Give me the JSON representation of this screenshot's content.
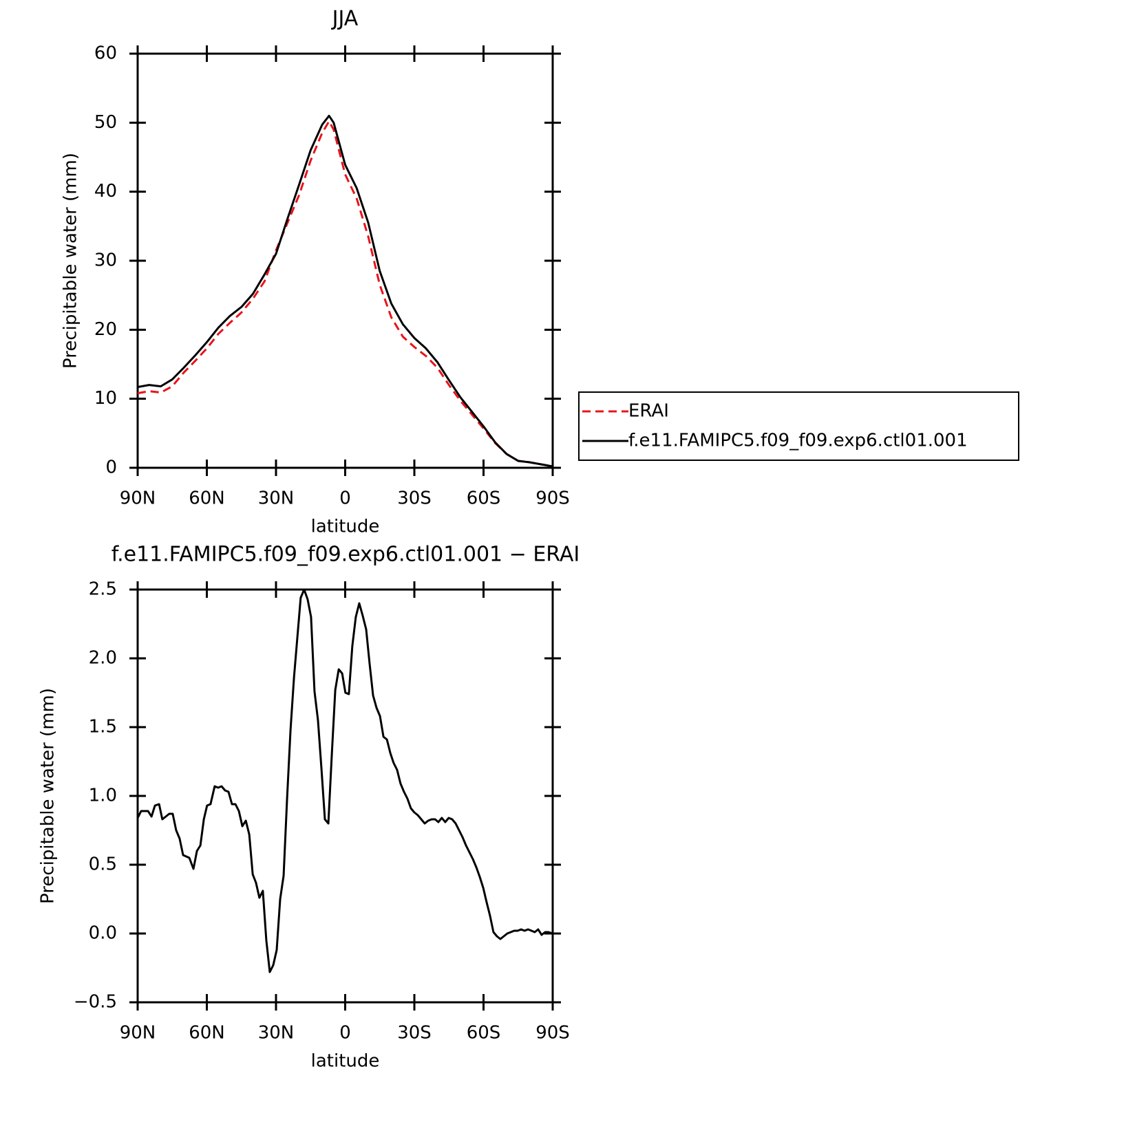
{
  "chart_data": [
    {
      "type": "line",
      "title": "JJA",
      "x_label": "latitude",
      "y_label": "Precipitable water (mm)",
      "x": [
        90,
        85,
        80,
        75,
        70,
        65,
        60,
        55,
        50,
        45,
        40,
        35,
        30,
        25,
        20,
        15,
        10,
        7,
        5,
        0,
        -5,
        -10,
        -15,
        -20,
        -25,
        -30,
        -35,
        -40,
        -45,
        -50,
        -55,
        -60,
        -65,
        -70,
        -75,
        -80,
        -85,
        -90
      ],
      "series": [
        {
          "name": "ERAI",
          "color": "#e8141a",
          "linestyle": "dashed",
          "values": [
            10.8,
            11.1,
            10.9,
            11.8,
            13.8,
            15.5,
            17.3,
            19.4,
            21.0,
            22.5,
            24.5,
            27.0,
            31.5,
            35.5,
            39.5,
            44.5,
            48.5,
            50.2,
            49.0,
            42.5,
            39.0,
            33.5,
            26.5,
            21.8,
            19.0,
            17.5,
            16.2,
            14.5,
            12.0,
            9.7,
            7.7,
            5.7,
            3.6,
            2.0,
            1.0,
            0.8,
            0.5,
            0.2
          ]
        },
        {
          "name": "f.e11.FAMIPC5.f09_f09.exp6.ctl01.001",
          "color": "#000000",
          "linestyle": "solid",
          "values": [
            11.7,
            12.0,
            11.8,
            12.8,
            14.5,
            16.3,
            18.2,
            20.3,
            22.0,
            23.3,
            25.2,
            28.0,
            31.0,
            36.1,
            41.0,
            46.0,
            49.7,
            51.0,
            50.0,
            43.9,
            40.5,
            35.5,
            28.5,
            23.8,
            20.8,
            18.8,
            17.3,
            15.3,
            12.7,
            10.2,
            8.1,
            6.0,
            3.7,
            2.0,
            1.0,
            0.8,
            0.5,
            0.2
          ]
        }
      ],
      "xlim": [
        90,
        -90
      ],
      "xticks": [
        {
          "value": 90,
          "label": "90N"
        },
        {
          "value": 60,
          "label": "60N"
        },
        {
          "value": 30,
          "label": "30N"
        },
        0,
        {
          "value": -30,
          "label": "30S"
        },
        {
          "value": -60,
          "label": "60S"
        },
        {
          "value": -90,
          "label": "90S"
        }
      ],
      "ylim": [
        0,
        60
      ],
      "yticks": [
        0,
        10,
        20,
        30,
        40,
        50,
        60
      ],
      "legend": "outside right"
    },
    {
      "type": "line",
      "title": "f.e11.FAMIPC5.f09_f09.exp6.ctl01.001 − ERAI",
      "x_label": "latitude",
      "y_label": "Precipitable water (mm)",
      "x": [
        90,
        88.5,
        85.5,
        84,
        82.5,
        80.7,
        79.3,
        76.3,
        74.8,
        73.3,
        71.8,
        70.3,
        67.6,
        65.8,
        64.3,
        62.8,
        61.3,
        59.9,
        58.4,
        56.6,
        55.1,
        53.6,
        52.1,
        50.6,
        49.1,
        47.6,
        46.1,
        44.6,
        43.1,
        41.6,
        40.1,
        38.7,
        37.2,
        35.7,
        34.2,
        32.7,
        31.2,
        29.7,
        28.2,
        26.7,
        25.2,
        23.7,
        22.2,
        20.7,
        19.3,
        17.8,
        16.3,
        14.8,
        13.3,
        11.8,
        10.3,
        8.8,
        7.3,
        5.8,
        4.3,
        2.8,
        1.3,
        -0.1,
        -1.6,
        -3.1,
        -4.6,
        -6.1,
        -7.6,
        -9.1,
        -10.6,
        -12.1,
        -13.6,
        -15.1,
        -16.6,
        -18.1,
        -19.6,
        -21.0,
        -22.5,
        -24.0,
        -25.5,
        -27.0,
        -28.5,
        -30.0,
        -31.5,
        -33.0,
        -34.5,
        -36.0,
        -37.5,
        -39.0,
        -40.4,
        -41.9,
        -43.4,
        -44.9,
        -46.4,
        -47.9,
        -49.4,
        -50.9,
        -52.4,
        -53.9,
        -55.4,
        -56.9,
        -58.4,
        -59.9,
        -61.3,
        -62.8,
        -64.3,
        -65.8,
        -67.3,
        -68.8,
        -70.3,
        -71.8,
        -73.3,
        -74.8,
        -76.3,
        -77.8,
        -79.3,
        -80.8,
        -82.2,
        -83.7,
        -85.2,
        -86.7,
        -88.2,
        -90
      ],
      "values": [
        0.84,
        0.89,
        0.89,
        0.85,
        0.93,
        0.94,
        0.83,
        0.87,
        0.87,
        0.75,
        0.69,
        0.57,
        0.55,
        0.47,
        0.6,
        0.64,
        0.83,
        0.93,
        0.94,
        1.07,
        1.06,
        1.07,
        1.04,
        1.03,
        0.94,
        0.94,
        0.89,
        0.78,
        0.82,
        0.72,
        0.43,
        0.37,
        0.26,
        0.31,
        -0.05,
        -0.28,
        -0.23,
        -0.12,
        0.25,
        0.42,
        0.98,
        1.48,
        1.86,
        2.16,
        2.44,
        2.5,
        2.43,
        2.3,
        1.76,
        1.55,
        1.2,
        0.83,
        0.8,
        1.3,
        1.77,
        1.92,
        1.89,
        1.75,
        1.74,
        2.09,
        2.3,
        2.4,
        2.31,
        2.21,
        1.96,
        1.73,
        1.64,
        1.58,
        1.43,
        1.41,
        1.31,
        1.24,
        1.19,
        1.09,
        1.03,
        0.98,
        0.91,
        0.88,
        0.86,
        0.83,
        0.8,
        0.82,
        0.83,
        0.83,
        0.81,
        0.84,
        0.81,
        0.84,
        0.83,
        0.8,
        0.75,
        0.7,
        0.64,
        0.59,
        0.54,
        0.48,
        0.41,
        0.33,
        0.23,
        0.13,
        0.01,
        -0.02,
        -0.04,
        -0.02,
        0.0,
        0.01,
        0.02,
        0.02,
        0.03,
        0.02,
        0.03,
        0.02,
        0.01,
        0.03,
        -0.01,
        0.01,
        0.01,
        0.0
      ],
      "color": "#000000",
      "xlim": [
        90,
        -90
      ],
      "xticks": [
        {
          "value": 90,
          "label": "90N"
        },
        {
          "value": 60,
          "label": "60N"
        },
        {
          "value": 30,
          "label": "30N"
        },
        0,
        {
          "value": -30,
          "label": "30S"
        },
        {
          "value": -60,
          "label": "60S"
        },
        {
          "value": -90,
          "label": "90S"
        }
      ],
      "ylim": [
        -0.5,
        2.5
      ],
      "yticks": [
        {
          "value": -0.5,
          "label": "−0.5"
        },
        {
          "value": 0,
          "label": "0.0"
        },
        0.5,
        {
          "value": 1,
          "label": "1.0"
        },
        1.5,
        {
          "value": 2,
          "label": "2.0"
        },
        2.5
      ]
    }
  ]
}
